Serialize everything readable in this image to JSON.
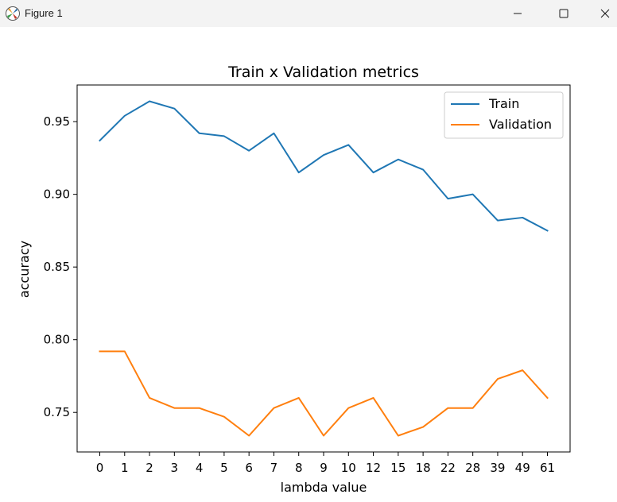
{
  "window": {
    "title": "Figure 1",
    "app_icon": "matplotlib-icon",
    "controls": [
      "minimize-icon",
      "maximize-icon",
      "close-icon"
    ]
  },
  "chart_data": {
    "type": "line",
    "title": "Train x Validation metrics",
    "xlabel": "lambda value",
    "ylabel": "accuracy",
    "categories": [
      "0",
      "1",
      "2",
      "3",
      "4",
      "5",
      "6",
      "7",
      "8",
      "9",
      "10",
      "12",
      "15",
      "18",
      "22",
      "28",
      "39",
      "49",
      "61"
    ],
    "series": [
      {
        "name": "Train",
        "color": "#1f77b4",
        "values": [
          0.937,
          0.954,
          0.964,
          0.959,
          0.942,
          0.94,
          0.93,
          0.942,
          0.915,
          0.927,
          0.934,
          0.915,
          0.924,
          0.917,
          0.897,
          0.9,
          0.882,
          0.884,
          0.875
        ]
      },
      {
        "name": "Validation",
        "color": "#ff7f0e",
        "values": [
          0.792,
          0.792,
          0.76,
          0.753,
          0.753,
          0.747,
          0.734,
          0.753,
          0.76,
          0.734,
          0.753,
          0.76,
          0.734,
          0.74,
          0.753,
          0.753,
          0.773,
          0.779,
          0.76
        ]
      }
    ],
    "yticks": [
      "0.75",
      "0.80",
      "0.85",
      "0.90",
      "0.95"
    ],
    "ylim": [
      0.7228,
      0.9752
    ],
    "grid": false,
    "legend_position": "upper right"
  }
}
